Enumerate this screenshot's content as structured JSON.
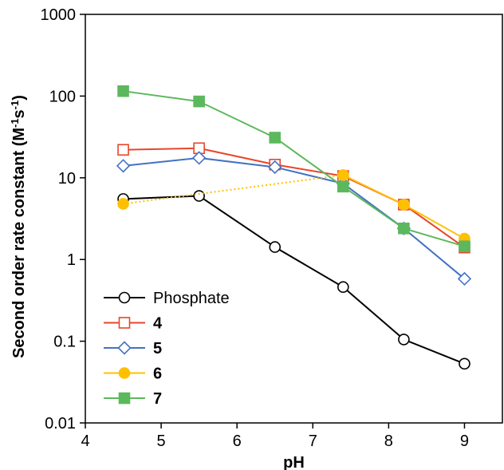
{
  "chart_data": {
    "type": "line",
    "title": "",
    "xlabel": "pH",
    "ylabel_main": "Second order rate constant (M",
    "ylabel_sup1": "-1",
    "ylabel_mid": "s",
    "ylabel_sup2": "-1",
    "ylabel_end": ")",
    "xlim": [
      4,
      9.5
    ],
    "ylim": [
      0.01,
      1000
    ],
    "yscale": "log",
    "x_ticks": [
      4,
      5,
      6,
      7,
      8,
      9
    ],
    "x_tick_labels": [
      "4",
      "5",
      "6",
      "7",
      "8",
      "9"
    ],
    "y_ticks": [
      0.01,
      0.1,
      1,
      10,
      100,
      1000
    ],
    "y_tick_labels": [
      "0.01",
      "0.1",
      "1",
      "10",
      "100",
      "1000"
    ],
    "grid": false,
    "legend_position": "bottom-left",
    "series": [
      {
        "name": "Phosphate",
        "bold": false,
        "color": "#000000",
        "marker": "circle",
        "filled": false,
        "line_style": "solid",
        "points": [
          [
            4.5,
            5.5
          ],
          [
            5.5,
            6.0
          ],
          [
            6.5,
            1.42
          ],
          [
            7.4,
            0.46
          ],
          [
            8.2,
            0.105
          ],
          [
            9.0,
            0.053
          ]
        ]
      },
      {
        "name": "4",
        "bold": true,
        "color": "#e8462a",
        "marker": "square",
        "filled": false,
        "line_style": "solid",
        "points": [
          [
            4.5,
            22.0
          ],
          [
            5.5,
            23.0
          ],
          [
            6.5,
            14.5
          ],
          [
            7.4,
            10.5
          ],
          [
            8.2,
            4.7
          ],
          [
            9.0,
            1.4
          ]
        ]
      },
      {
        "name": "5",
        "bold": true,
        "color": "#4472c4",
        "marker": "diamond",
        "filled": false,
        "line_style": "solid",
        "points": [
          [
            4.5,
            14.0
          ],
          [
            5.5,
            17.5
          ],
          [
            6.5,
            13.5
          ],
          [
            7.4,
            8.5
          ],
          [
            8.2,
            2.4
          ],
          [
            9.0,
            0.58
          ]
        ]
      },
      {
        "name": "6",
        "bold": true,
        "color": "#ffc000",
        "marker": "circle",
        "filled": true,
        "line_style": "mixed",
        "dotted_until_index": 2,
        "points": [
          [
            4.5,
            4.8
          ],
          [
            7.4,
            10.8
          ],
          [
            8.2,
            4.7
          ],
          [
            9.0,
            1.8
          ]
        ]
      },
      {
        "name": "7",
        "bold": true,
        "color": "#5cb85c",
        "marker": "square",
        "filled": true,
        "line_style": "solid",
        "points": [
          [
            4.5,
            115.0
          ],
          [
            5.5,
            86.0
          ],
          [
            6.5,
            31.0
          ],
          [
            7.4,
            7.8
          ],
          [
            8.2,
            2.4
          ],
          [
            9.0,
            1.45
          ]
        ]
      }
    ]
  }
}
